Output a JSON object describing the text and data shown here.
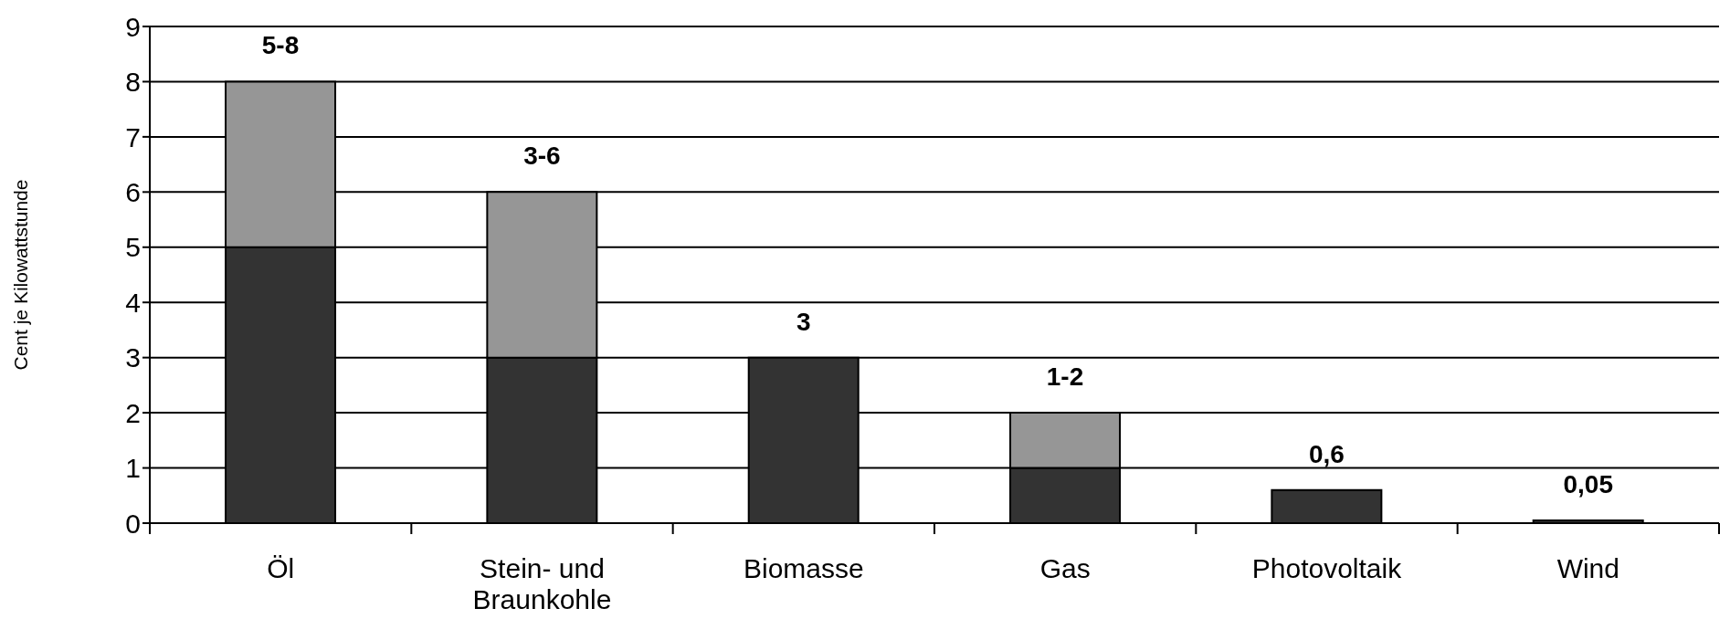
{
  "chart_data": {
    "type": "bar",
    "stacked": true,
    "ylabel": "Cent je Kilowattstunde",
    "categories": [
      "Öl",
      "Stein- und Braunkohle",
      "Biomasse",
      "Gas",
      "Photovoltaik",
      "Wind"
    ],
    "series": [
      {
        "color": "#333333",
        "values": [
          5,
          3,
          3,
          1,
          0.6,
          0.05
        ]
      },
      {
        "color": "#969696",
        "values": [
          3,
          3,
          0,
          1,
          0,
          0
        ]
      }
    ],
    "totals": [
      "5-8",
      "3-6",
      "3",
      "1-2",
      "0,6",
      "0,05"
    ],
    "ylim": [
      0,
      9
    ],
    "yticks": [
      0,
      1,
      2,
      3,
      4,
      5,
      6,
      7,
      8,
      9
    ],
    "grid": "y",
    "legend": false
  }
}
